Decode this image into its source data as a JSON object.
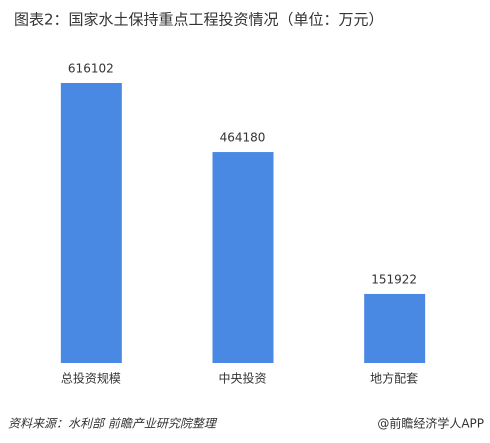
{
  "chart_data": {
    "type": "bar",
    "title": "图表2：国家水土保持重点工程投资情况（单位：万元）",
    "categories": [
      "总投资规模",
      "中央投资",
      "地方配套"
    ],
    "values": [
      616102,
      464180,
      151922
    ],
    "color": "#4a89e3",
    "source": "资料来源：水利部 前瞻产业研究院整理",
    "brand": "@前瞻经济学人APP"
  }
}
